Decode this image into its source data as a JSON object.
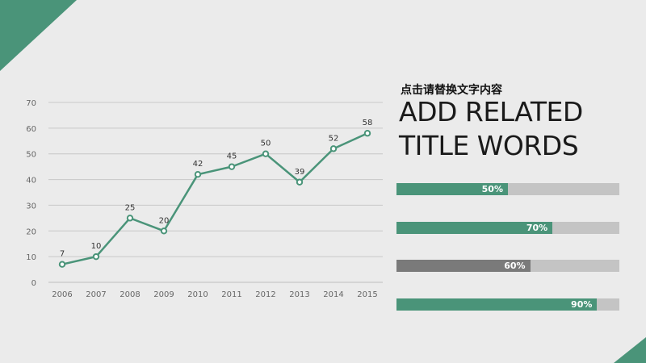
{
  "colors": {
    "accent": "#4a9479",
    "grey_bar": "#7a7a7a",
    "track": "#c4c4c4",
    "grid": "#c8c8c8"
  },
  "subtitle": "点击请替换文字内容",
  "title_lines": [
    "ADD RELATED",
    "TITLE WORDS"
  ],
  "progress_bars": [
    {
      "label": "50%",
      "value": 0.5,
      "color": "#4a9479"
    },
    {
      "label": "70%",
      "value": 0.7,
      "color": "#4a9479"
    },
    {
      "label": "60%",
      "value": 0.6,
      "color": "#7a7a7a"
    },
    {
      "label": "90%",
      "value": 0.9,
      "color": "#4a9479"
    }
  ],
  "chart_data": {
    "type": "line",
    "x": [
      "2006",
      "2007",
      "2008",
      "2009",
      "2010",
      "2011",
      "2012",
      "2013",
      "2014",
      "2015"
    ],
    "series": [
      {
        "values": [
          7,
          10,
          25,
          20,
          42,
          45,
          50,
          39,
          52,
          58
        ]
      }
    ],
    "data_labels": [
      "7",
      "10",
      "25",
      "20",
      "42",
      "45",
      "50",
      "39",
      "52",
      "58"
    ],
    "y_ticks": [
      "0",
      "10",
      "20",
      "30",
      "40",
      "50",
      "60",
      "70"
    ],
    "ylim": [
      0,
      70
    ],
    "grid": true,
    "title": "",
    "xlabel": "",
    "ylabel": ""
  }
}
